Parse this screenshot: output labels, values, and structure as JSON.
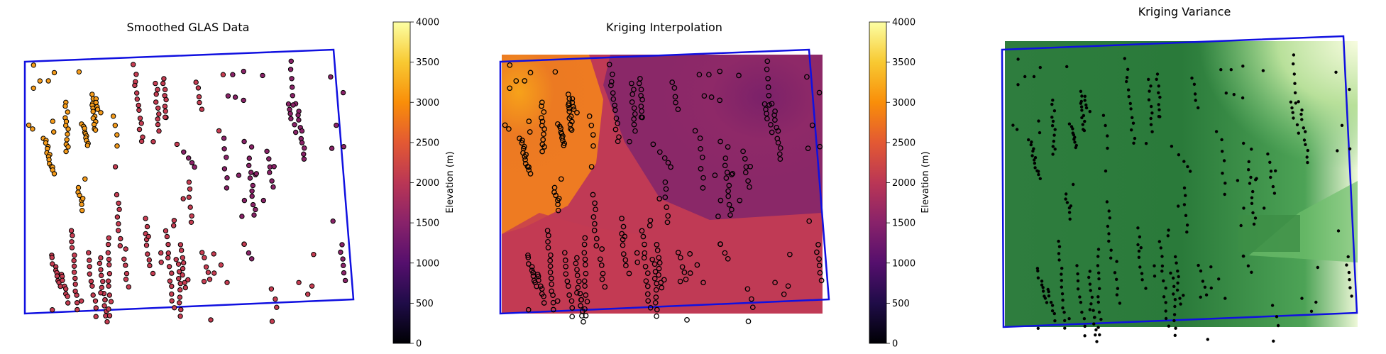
{
  "chart_data": [
    {
      "type": "scatter",
      "title": "Smoothed GLAS Data",
      "colormap": "inferno",
      "colorbar": {
        "label": "Elevation (m)",
        "range": [
          0,
          4000
        ],
        "ticks": [
          "0",
          "500",
          "1000",
          "1500",
          "2000",
          "2500",
          "3000",
          "3500",
          "4000"
        ]
      },
      "boundary_color": "#0000ff",
      "marker_edge": "#000000",
      "axes": "off"
    },
    {
      "type": "heatmap",
      "title": "Kriging Interpolation",
      "colormap": "inferno",
      "colorbar": {
        "label": "Elevation (m)",
        "range": [
          0,
          4000
        ],
        "ticks": [
          "0",
          "500",
          "1000",
          "1500",
          "2000",
          "2500",
          "3000",
          "3500",
          "4000"
        ]
      },
      "overlay": "hollow sample points",
      "boundary_color": "#0000ff",
      "axes": "off"
    },
    {
      "type": "heatmap",
      "title": "Kriging Variance",
      "colormap": "greens (dark = low variance)",
      "overlay": "black sample points",
      "boundary_color": "#0000ff",
      "axes": "off"
    }
  ]
}
